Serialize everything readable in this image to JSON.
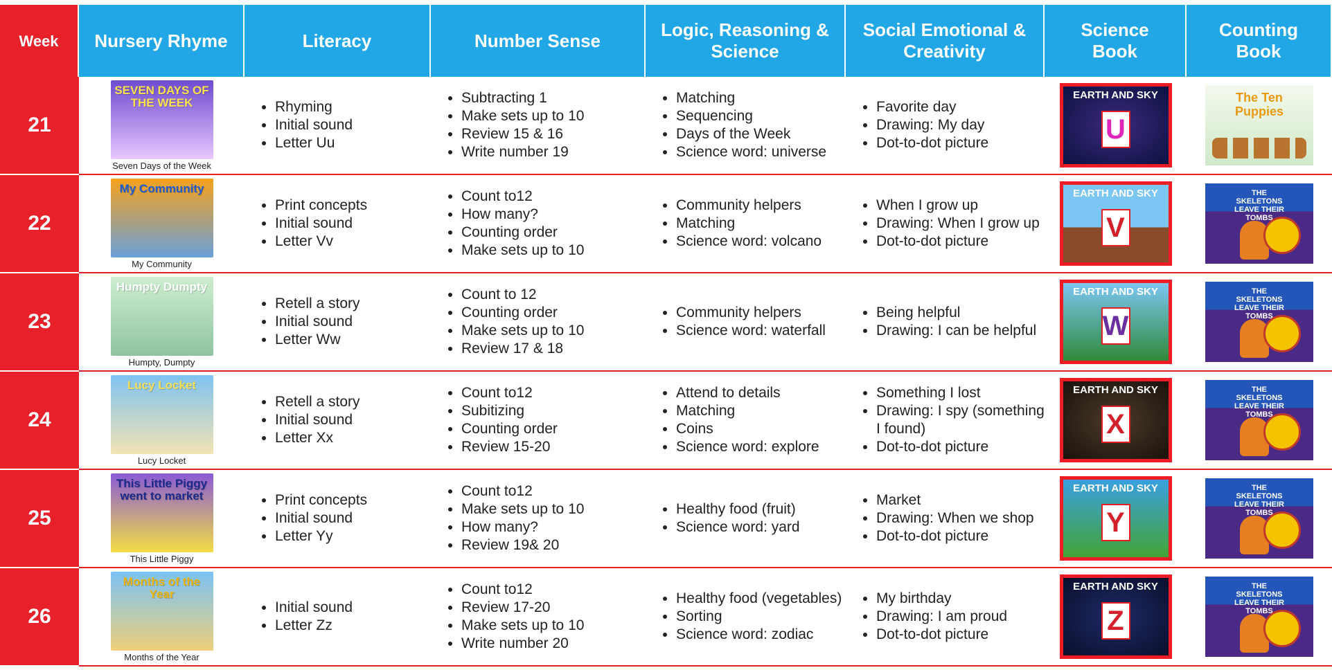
{
  "header": [
    "Week",
    "Nursery Rhyme",
    "Literacy",
    "Number Sense",
    "Logic, Reasoning & Science",
    "Social Emotional & Creativity",
    "Science Book",
    "Counting Book"
  ],
  "rows": [
    {
      "week": 21,
      "rhyme": {
        "cover_title": "SEVEN DAYS OF THE WEEK",
        "caption": "Seven Days of the Week"
      },
      "literacy": [
        "Rhyming",
        "Initial sound",
        "Letter Uu"
      ],
      "number_sense": [
        "Subtracting 1",
        "Make sets up to 10",
        "Review 15 & 16",
        "Write number 19"
      ],
      "logic": [
        "Matching",
        "Sequencing",
        "Days of the Week",
        "Science word: universe"
      ],
      "social": [
        "Favorite day",
        "Drawing: My day",
        "Dot-to-dot picture"
      ],
      "science_book": {
        "title": "EARTH AND SKY",
        "letter": "U"
      },
      "counting_book": {
        "title": "The Ten Puppies"
      }
    },
    {
      "week": 22,
      "rhyme": {
        "cover_title": "My Community",
        "caption": "My Community"
      },
      "literacy": [
        "Print concepts",
        "Initial sound",
        "Letter Vv"
      ],
      "number_sense": [
        "Count to12",
        "How many?",
        "Counting order",
        "Make sets up to 10"
      ],
      "logic": [
        "Community helpers",
        "Matching",
        "Science word: volcano"
      ],
      "social": [
        "When I grow up",
        "Drawing: When I grow up",
        "Dot-to-dot picture"
      ],
      "science_book": {
        "title": "EARTH AND SKY",
        "letter": "V"
      },
      "counting_book": {
        "title": "THE SKELETONS LEAVE THEIR TOMBS"
      }
    },
    {
      "week": 23,
      "rhyme": {
        "cover_title": "Humpty Dumpty",
        "caption": "Humpty, Dumpty"
      },
      "literacy": [
        "Retell a story",
        "Initial sound",
        "Letter Ww"
      ],
      "number_sense": [
        "Count to 12",
        "Counting order",
        "Make sets up to 10",
        "Review 17 & 18"
      ],
      "logic": [
        "Community helpers",
        "Science word: waterfall"
      ],
      "social": [
        "Being helpful",
        "Drawing: I can be helpful"
      ],
      "science_book": {
        "title": "EARTH AND SKY",
        "letter": "W"
      },
      "counting_book": {
        "title": "THE SKELETONS LEAVE THEIR TOMBS"
      }
    },
    {
      "week": 24,
      "rhyme": {
        "cover_title": "Lucy Locket",
        "caption": "Lucy Locket"
      },
      "literacy": [
        "Retell a story",
        "Initial sound",
        "Letter Xx"
      ],
      "number_sense": [
        "Count to12",
        "Subitizing",
        "Counting order",
        "Review 15-20"
      ],
      "logic": [
        "Attend to details",
        "Matching",
        "Coins",
        "Science word: explore"
      ],
      "social": [
        "Something I lost",
        "Drawing: I spy (something I found)",
        "Dot-to-dot picture"
      ],
      "science_book": {
        "title": "EARTH AND SKY",
        "letter": "X"
      },
      "counting_book": {
        "title": "THE SKELETONS LEAVE THEIR TOMBS"
      }
    },
    {
      "week": 25,
      "rhyme": {
        "cover_title": "This Little Piggy went to market",
        "caption": "This Little Piggy"
      },
      "literacy": [
        "Print concepts",
        "Initial sound",
        "Letter Yy"
      ],
      "number_sense": [
        "Count to12",
        "Make sets up to 10",
        "How many?",
        "Review 19& 20"
      ],
      "logic": [
        "Healthy food (fruit)",
        "Science word: yard"
      ],
      "social": [
        "Market",
        "Drawing: When we shop",
        "Dot-to-dot picture"
      ],
      "science_book": {
        "title": "EARTH AND SKY",
        "letter": "Y"
      },
      "counting_book": {
        "title": "THE SKELETONS LEAVE THEIR TOMBS"
      }
    },
    {
      "week": 26,
      "rhyme": {
        "cover_title": "Months of the Year",
        "caption": "Months of the Year"
      },
      "literacy": [
        "Initial sound",
        "Letter Zz"
      ],
      "number_sense": [
        "Count to12",
        "Review 17-20",
        "Make sets up to 10",
        "Write number 20"
      ],
      "logic": [
        "Healthy food (vegetables)",
        "Sorting",
        "Science word: zodiac"
      ],
      "social": [
        "My birthday",
        "Drawing: I am proud",
        "Dot-to-dot picture"
      ],
      "science_book": {
        "title": "EARTH AND SKY",
        "letter": "Z"
      },
      "counting_book": {
        "title": "THE SKELETONS LEAVE THEIR TOMBS"
      }
    }
  ]
}
